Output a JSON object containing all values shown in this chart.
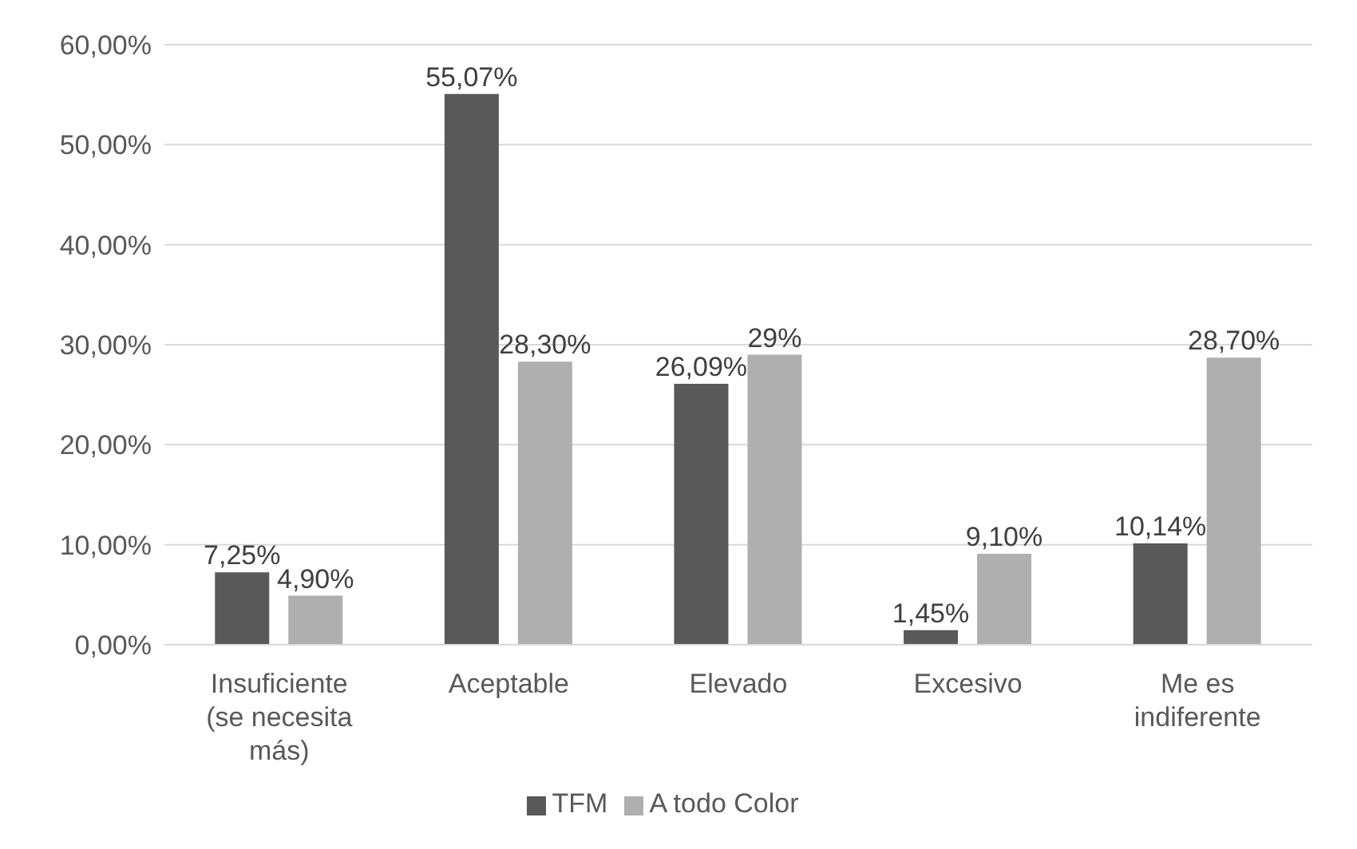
{
  "chart_data": {
    "type": "bar",
    "categories": [
      "Insuficiente (se necesita más)",
      "Aceptable",
      "Elevado",
      "Excesivo",
      "Me es indiferente"
    ],
    "series": [
      {
        "name": "TFM",
        "color": "#595959",
        "values": [
          7.25,
          55.07,
          26.09,
          1.45,
          10.14
        ],
        "value_labels": [
          "7,25%",
          "55,07%",
          "26,09%",
          "1,45%",
          "10,14%"
        ]
      },
      {
        "name": "A todo Color",
        "color": "#afafaf",
        "values": [
          4.9,
          28.3,
          29,
          9.1,
          28.7
        ],
        "value_labels": [
          "4,90%",
          "28,30%",
          "29%",
          "9,10%",
          "28,70%"
        ]
      }
    ],
    "ylim": [
      0,
      60
    ],
    "yticks": [
      {
        "value": 0,
        "label": "0,00%"
      },
      {
        "value": 10,
        "label": "10,00%"
      },
      {
        "value": 20,
        "label": "20,00%"
      },
      {
        "value": 30,
        "label": "30,00%"
      },
      {
        "value": 40,
        "label": "40,00%"
      },
      {
        "value": 50,
        "label": "50,00%"
      },
      {
        "value": 60,
        "label": "60,00%"
      }
    ],
    "grid": "y",
    "legend": "bottom"
  }
}
